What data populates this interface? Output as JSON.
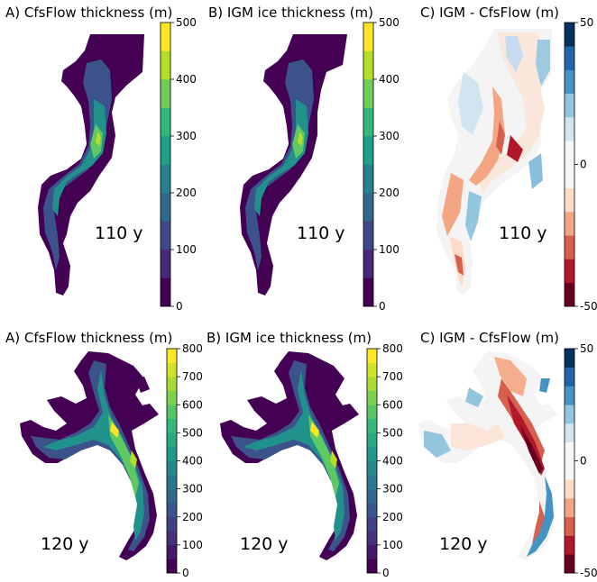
{
  "chart_data": [
    {
      "type": "heatmap",
      "title": "A) CfsFlow thickness (m)",
      "annotation": "110 y",
      "colormap": "viridis",
      "colorbar": {
        "ticks": [
          0,
          100,
          200,
          300,
          400,
          500
        ],
        "range": [
          0,
          500
        ],
        "levels": 10
      }
    },
    {
      "type": "heatmap",
      "title": "B) IGM ice thickness (m)",
      "annotation": "110 y",
      "colormap": "viridis",
      "colorbar": {
        "ticks": [
          0,
          100,
          200,
          300,
          400,
          500
        ],
        "range": [
          0,
          500
        ],
        "levels": 10
      }
    },
    {
      "type": "heatmap",
      "title": "C) IGM - CfsFlow (m)",
      "annotation": "110 y",
      "colormap": "RdBu",
      "colorbar": {
        "ticks": [
          50,
          0,
          -50
        ],
        "range": [
          -50,
          50
        ],
        "levels": 12
      }
    },
    {
      "type": "heatmap",
      "title": "A) CfsFlow thickness (m)",
      "annotation": "120 y",
      "colormap": "viridis",
      "colorbar": {
        "ticks": [
          0,
          100,
          200,
          300,
          400,
          500,
          600,
          700,
          800
        ],
        "range": [
          0,
          800
        ],
        "levels": 16
      }
    },
    {
      "type": "heatmap",
      "title": "B) IGM ice thickness (m)",
      "annotation": "120 y",
      "colormap": "viridis",
      "colorbar": {
        "ticks": [
          0,
          100,
          200,
          300,
          400,
          500,
          600,
          700,
          800
        ],
        "range": [
          0,
          800
        ],
        "levels": 16
      }
    },
    {
      "type": "heatmap",
      "title": "C) IGM - CfsFlow (m)",
      "annotation": "120 y",
      "colormap": "RdBu",
      "colorbar": {
        "ticks": [
          50,
          0,
          -50
        ],
        "range": [
          -50,
          50
        ],
        "levels": 12
      }
    }
  ]
}
